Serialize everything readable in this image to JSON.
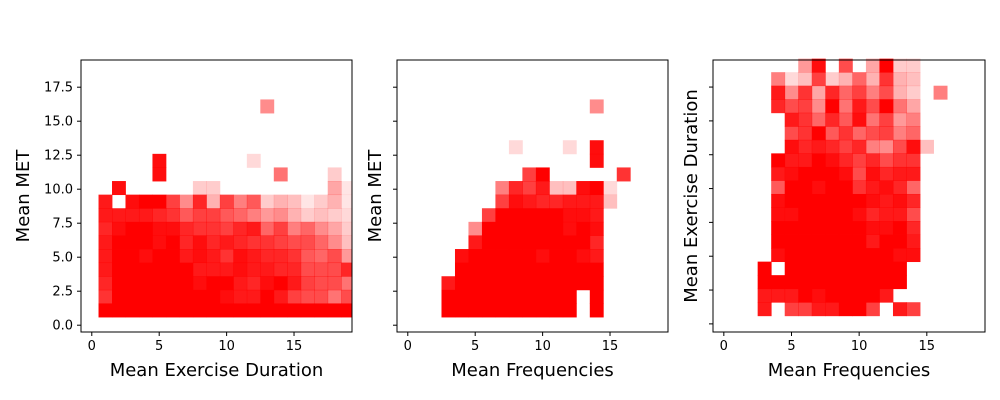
{
  "colors": {
    "cell": "#ff0000",
    "background": "#ffffff",
    "frame": "#000000"
  },
  "chart_data": [
    {
      "type": "heatmap",
      "xlabel": "Mean Exercise Duration",
      "ylabel": "Mean MET",
      "xlim": [
        -0.8,
        19.3
      ],
      "ylim": [
        -0.5,
        19.5
      ],
      "xticks": [
        0,
        5,
        10,
        15
      ],
      "xtick_labels": [
        "0",
        "5",
        "10",
        "15"
      ],
      "yticks": [
        0.0,
        2.5,
        5.0,
        7.5,
        10.0,
        12.5,
        15.0,
        17.5
      ],
      "ytick_labels": [
        "0.0",
        "2.5",
        "5.0",
        "7.5",
        "10.0",
        "12.5",
        "15.0",
        "17.5"
      ],
      "show_y_tick_labels": true,
      "x_edges": [
        0.5,
        1.5,
        2.5,
        3.5,
        4.5,
        5.5,
        6.5,
        7.5,
        8.5,
        9.5,
        10.5,
        11.5,
        12.5,
        13.5,
        14.5,
        15.5,
        16.5,
        17.5,
        18.5,
        19.3
      ],
      "y_edges": [
        0.6,
        1.6,
        2.6,
        3.6,
        4.6,
        5.6,
        6.6,
        7.6,
        8.6,
        9.6,
        10.6,
        11.6,
        12.6,
        13.6,
        14.6,
        15.6,
        16.6
      ],
      "intensity": [
        [
          1.0,
          1.0,
          1.0,
          1.0,
          1.0,
          1.0,
          1.0,
          1.0,
          1.0,
          1.0,
          1.0,
          1.0,
          1.0,
          1.0,
          1.0,
          1.0,
          1.0,
          1.0,
          1.0
        ],
        [
          0.8,
          1.0,
          1.0,
          1.0,
          1.0,
          1.0,
          1.0,
          1.0,
          1.0,
          0.95,
          0.9,
          0.9,
          1.0,
          0.9,
          0.75,
          0.7,
          0.7,
          0.55,
          0.7
        ],
        [
          0.85,
          1.0,
          1.0,
          1.0,
          1.0,
          1.0,
          1.0,
          0.95,
          1.0,
          1.0,
          0.9,
          0.85,
          0.95,
          1.0,
          0.9,
          0.75,
          0.7,
          0.7,
          0.55
        ],
        [
          0.9,
          1.0,
          1.0,
          1.0,
          1.0,
          1.0,
          1.0,
          0.9,
          0.9,
          0.9,
          0.95,
          0.9,
          0.9,
          0.85,
          0.85,
          0.7,
          0.7,
          0.7,
          0.85
        ],
        [
          0.9,
          1.0,
          1.0,
          0.95,
          1.0,
          1.0,
          0.9,
          0.95,
          0.9,
          0.8,
          0.95,
          0.9,
          0.85,
          0.85,
          0.8,
          0.65,
          0.6,
          0.7,
          0.4
        ],
        [
          0.9,
          1.0,
          1.0,
          1.0,
          0.95,
          1.0,
          0.85,
          0.95,
          0.85,
          0.9,
          0.85,
          0.8,
          0.8,
          0.75,
          0.7,
          0.7,
          0.6,
          0.45,
          0.25
        ],
        [
          0.85,
          0.95,
          1.0,
          1.0,
          0.95,
          0.95,
          0.85,
          0.8,
          0.8,
          0.75,
          0.85,
          0.9,
          0.6,
          0.75,
          0.5,
          0.6,
          0.45,
          0.35,
          0.2
        ],
        [
          0.9,
          0.9,
          0.9,
          0.9,
          0.85,
          0.8,
          0.65,
          0.75,
          0.75,
          0.65,
          0.6,
          0.5,
          0.4,
          0.45,
          0.3,
          0.2,
          0.25,
          0.2,
          0.15
        ],
        [
          0.9,
          0.0,
          0.95,
          1.0,
          1.0,
          0.75,
          0.45,
          0.85,
          0.3,
          0.75,
          0.5,
          0.65,
          0.2,
          0.3,
          0.25,
          0.1,
          0.2,
          0.3,
          0.1
        ],
        [
          0.0,
          0.95,
          0.0,
          0.0,
          0.0,
          0.0,
          0.0,
          0.2,
          0.2,
          0.0,
          0.0,
          0.0,
          0.0,
          0.0,
          0.0,
          0.0,
          0.0,
          0.35,
          0.1
        ],
        [
          0.0,
          0.0,
          0.0,
          0.0,
          0.95,
          0.0,
          0.0,
          0.0,
          0.0,
          0.0,
          0.0,
          0.0,
          0.0,
          0.55,
          0.0,
          0.0,
          0.0,
          0.2,
          0.0
        ],
        [
          0.0,
          0.0,
          0.0,
          0.0,
          0.95,
          0.0,
          0.0,
          0.0,
          0.0,
          0.0,
          0.0,
          0.15,
          0.0,
          0.0,
          0.0,
          0.0,
          0.0,
          0.0,
          0.0
        ],
        [
          0.0,
          0.0,
          0.0,
          0.0,
          0.0,
          0.0,
          0.0,
          0.0,
          0.0,
          0.0,
          0.0,
          0.0,
          0.0,
          0.0,
          0.0,
          0.0,
          0.0,
          0.0,
          0.0
        ],
        [
          0.0,
          0.0,
          0.0,
          0.0,
          0.0,
          0.0,
          0.0,
          0.0,
          0.0,
          0.0,
          0.0,
          0.0,
          0.0,
          0.0,
          0.0,
          0.0,
          0.0,
          0.0,
          0.0
        ],
        [
          0.0,
          0.0,
          0.0,
          0.0,
          0.0,
          0.0,
          0.0,
          0.0,
          0.0,
          0.0,
          0.0,
          0.0,
          0.0,
          0.0,
          0.0,
          0.0,
          0.0,
          0.0,
          0.0
        ],
        [
          0.0,
          0.0,
          0.0,
          0.0,
          0.0,
          0.0,
          0.0,
          0.0,
          0.0,
          0.0,
          0.0,
          0.0,
          0.45,
          0.0,
          0.0,
          0.0,
          0.0,
          0.0,
          0.0
        ]
      ]
    },
    {
      "type": "heatmap",
      "xlabel": "Mean Frequencies",
      "ylabel": "Mean MET",
      "xlim": [
        -0.8,
        19.3
      ],
      "ylim": [
        -0.5,
        19.5
      ],
      "xticks": [
        0,
        5,
        10,
        15
      ],
      "xtick_labels": [
        "0",
        "5",
        "10",
        "15"
      ],
      "yticks": [
        0.0,
        2.5,
        5.0,
        7.5,
        10.0,
        12.5,
        15.0,
        17.5
      ],
      "ytick_labels": [],
      "show_y_tick_labels": false,
      "x_edges": [
        2.5,
        3.5,
        4.5,
        5.5,
        6.5,
        7.5,
        8.5,
        9.5,
        10.5,
        11.5,
        12.5,
        13.5,
        14.5,
        15.5,
        16.5
      ],
      "y_edges": [
        0.6,
        1.6,
        2.6,
        3.6,
        4.6,
        5.6,
        6.6,
        7.6,
        8.6,
        9.6,
        10.6,
        11.6,
        12.6,
        13.6,
        14.6,
        15.6,
        16.6
      ],
      "intensity": [
        [
          1.0,
          1.0,
          1.0,
          1.0,
          1.0,
          1.0,
          1.0,
          1.0,
          1.0,
          1.0,
          0.0,
          1.0,
          0.0,
          0.0
        ],
        [
          1.0,
          1.0,
          1.0,
          1.0,
          1.0,
          1.0,
          1.0,
          1.0,
          1.0,
          1.0,
          0.0,
          1.0,
          0.0,
          0.0
        ],
        [
          0.9,
          1.0,
          1.0,
          1.0,
          1.0,
          1.0,
          1.0,
          1.0,
          1.0,
          1.0,
          1.0,
          1.0,
          0.0,
          0.0
        ],
        [
          0.0,
          1.0,
          1.0,
          1.0,
          1.0,
          1.0,
          1.0,
          1.0,
          1.0,
          1.0,
          1.0,
          1.0,
          0.0,
          0.0
        ],
        [
          0.0,
          0.95,
          1.0,
          1.0,
          1.0,
          1.0,
          1.0,
          0.95,
          1.0,
          1.0,
          0.95,
          0.9,
          0.0,
          0.0
        ],
        [
          0.0,
          0.0,
          0.9,
          1.0,
          1.0,
          1.0,
          1.0,
          1.0,
          1.0,
          1.0,
          1.0,
          0.85,
          0.0,
          0.0
        ],
        [
          0.0,
          0.0,
          0.45,
          1.0,
          1.0,
          1.0,
          1.0,
          1.0,
          1.0,
          0.95,
          1.0,
          0.95,
          0.0,
          0.0
        ],
        [
          0.0,
          0.0,
          0.0,
          0.75,
          1.0,
          1.0,
          1.0,
          1.0,
          1.0,
          0.95,
          0.95,
          0.9,
          0.0,
          0.0
        ],
        [
          0.0,
          0.0,
          0.0,
          0.0,
          0.75,
          0.95,
          0.9,
          0.85,
          0.85,
          0.9,
          0.9,
          0.9,
          0.25,
          0.0
        ],
        [
          0.0,
          0.0,
          0.0,
          0.0,
          0.5,
          0.85,
          0.75,
          0.9,
          0.25,
          0.25,
          0.95,
          1.0,
          0.15,
          0.0
        ],
        [
          0.0,
          0.0,
          0.0,
          0.0,
          0.0,
          0.0,
          0.75,
          1.0,
          0.0,
          0.0,
          0.0,
          0.0,
          0.0,
          0.8
        ],
        [
          0.0,
          0.0,
          0.0,
          0.0,
          0.0,
          0.0,
          0.0,
          0.0,
          0.0,
          0.0,
          0.0,
          0.95,
          0.0,
          0.0
        ],
        [
          0.0,
          0.0,
          0.0,
          0.0,
          0.0,
          0.15,
          0.0,
          0.0,
          0.0,
          0.15,
          0.0,
          0.95,
          0.0,
          0.0
        ],
        [
          0.0,
          0.0,
          0.0,
          0.0,
          0.0,
          0.0,
          0.0,
          0.0,
          0.0,
          0.0,
          0.0,
          0.0,
          0.0,
          0.0
        ],
        [
          0.0,
          0.0,
          0.0,
          0.0,
          0.0,
          0.0,
          0.0,
          0.0,
          0.0,
          0.0,
          0.0,
          0.0,
          0.0,
          0.0
        ],
        [
          0.0,
          0.0,
          0.0,
          0.0,
          0.0,
          0.0,
          0.0,
          0.0,
          0.0,
          0.0,
          0.0,
          0.45,
          0.0,
          0.0
        ]
      ]
    },
    {
      "type": "heatmap",
      "xlabel": "Mean Frequencies",
      "ylabel": "Mean Exercise Duration",
      "xlim": [
        -0.8,
        19.3
      ],
      "ylim": [
        -0.6,
        19.5
      ],
      "xticks": [
        0,
        5,
        10,
        15
      ],
      "xtick_labels": [
        "0",
        "5",
        "10",
        "15"
      ],
      "yticks": [
        0.0,
        2.5,
        5.0,
        7.5,
        10.0,
        12.5,
        15.0,
        17.5
      ],
      "ytick_labels": [],
      "show_y_tick_labels": false,
      "x_edges": [
        2.5,
        3.5,
        4.5,
        5.5,
        6.5,
        7.5,
        8.5,
        9.5,
        10.5,
        11.5,
        12.5,
        13.5,
        14.5,
        15.5,
        16.5
      ],
      "y_edges": [
        0.6,
        1.6,
        2.6,
        3.6,
        4.6,
        5.6,
        6.6,
        7.6,
        8.6,
        9.6,
        10.6,
        11.6,
        12.6,
        13.6,
        14.6,
        15.6,
        16.6,
        17.6,
        18.6,
        19.6
      ],
      "intensity": [
        [
          0.9,
          0.0,
          0.75,
          0.75,
          0.9,
          0.9,
          1.0,
          1.0,
          0.75,
          0.0,
          0.9,
          0.75,
          0.0,
          0.0
        ],
        [
          0.9,
          0.9,
          0.9,
          1.0,
          0.95,
          1.0,
          1.0,
          1.0,
          1.0,
          0.9,
          0.0,
          0.0,
          0.0,
          0.0
        ],
        [
          1.0,
          1.0,
          1.0,
          1.0,
          1.0,
          1.0,
          1.0,
          1.0,
          1.0,
          1.0,
          1.0,
          0.0,
          0.0,
          0.0
        ],
        [
          1.0,
          0.0,
          1.0,
          1.0,
          1.0,
          1.0,
          1.0,
          1.0,
          1.0,
          1.0,
          1.0,
          0.0,
          0.0,
          0.0
        ],
        [
          0.0,
          0.95,
          1.0,
          1.0,
          1.0,
          1.0,
          1.0,
          1.0,
          1.0,
          1.0,
          0.95,
          0.95,
          0.0,
          0.0
        ],
        [
          0.0,
          1.0,
          1.0,
          1.0,
          1.0,
          1.0,
          1.0,
          1.0,
          0.9,
          1.0,
          1.0,
          0.9,
          0.0,
          0.0
        ],
        [
          0.0,
          1.0,
          1.0,
          1.0,
          1.0,
          1.0,
          1.0,
          1.0,
          0.95,
          0.95,
          1.0,
          0.85,
          0.0,
          0.0
        ],
        [
          0.0,
          0.95,
          0.95,
          1.0,
          1.0,
          1.0,
          1.0,
          0.95,
          0.85,
          0.9,
          0.9,
          0.7,
          0.0,
          0.0
        ],
        [
          0.0,
          0.95,
          1.0,
          1.0,
          1.0,
          1.0,
          1.0,
          1.0,
          0.95,
          0.9,
          0.95,
          0.85,
          0.0,
          0.0
        ],
        [
          0.0,
          0.65,
          1.0,
          1.0,
          0.95,
          1.0,
          1.0,
          0.8,
          0.9,
          0.95,
          0.85,
          0.6,
          0.0,
          0.0
        ],
        [
          0.0,
          0.9,
          0.95,
          1.0,
          1.0,
          1.0,
          0.95,
          0.7,
          0.95,
          0.85,
          0.9,
          0.9,
          0.0,
          0.0
        ],
        [
          0.0,
          1.0,
          0.9,
          0.9,
          1.0,
          0.95,
          0.85,
          0.75,
          0.85,
          0.7,
          0.8,
          0.8,
          0.0,
          0.0
        ],
        [
          0.0,
          0.0,
          0.95,
          0.85,
          0.9,
          0.85,
          0.75,
          0.85,
          0.5,
          0.45,
          0.7,
          0.95,
          0.25,
          0.0
        ],
        [
          0.0,
          0.0,
          0.7,
          0.8,
          1.0,
          0.65,
          0.8,
          0.6,
          0.7,
          0.75,
          0.5,
          0.6,
          0.0,
          0.0
        ],
        [
          0.0,
          0.0,
          0.9,
          0.8,
          0.6,
          0.85,
          0.65,
          0.95,
          0.55,
          0.75,
          0.4,
          0.5,
          0.0,
          0.0
        ],
        [
          0.0,
          0.85,
          0.7,
          0.75,
          0.45,
          1.0,
          0.55,
          0.9,
          0.7,
          1.0,
          0.55,
          0.35,
          0.0,
          0.0
        ],
        [
          0.0,
          0.9,
          0.45,
          0.8,
          0.35,
          0.85,
          0.6,
          0.75,
          0.5,
          0.7,
          0.3,
          0.2,
          0.0,
          0.5
        ],
        [
          0.0,
          0.5,
          0.15,
          0.25,
          0.75,
          0.2,
          0.3,
          0.6,
          0.3,
          0.8,
          0.3,
          0.25,
          0.0,
          0.0
        ],
        [
          0.0,
          0.0,
          0.0,
          0.4,
          0.95,
          0.0,
          0.7,
          0.0,
          0.35,
          1.0,
          0.2,
          0.2,
          0.0,
          0.0
        ]
      ]
    }
  ]
}
